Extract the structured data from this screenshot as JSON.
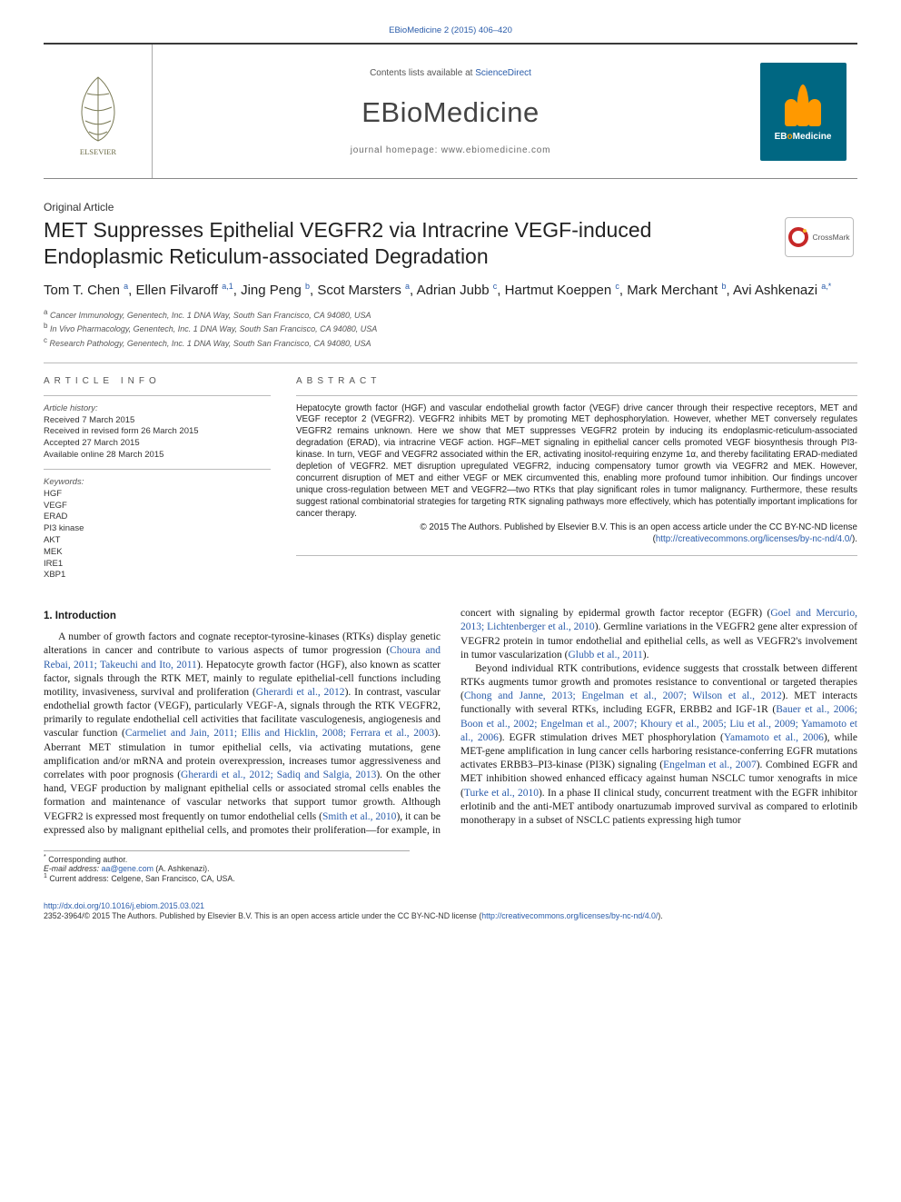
{
  "journal": {
    "running_head": "EBioMedicine 2 (2015) 406–420",
    "title": "EBioMedicine",
    "contents_prefix": "Contents lists available at ",
    "contents_link": "ScienceDirect",
    "homepage_prefix": "journal homepage: ",
    "homepage": "www.ebiomedicine.com",
    "cover_text_a": "EB",
    "cover_text_b": "o",
    "cover_text_c": "Medicine",
    "elsevier": "ELSEVIER"
  },
  "article": {
    "section": "Original Article",
    "title": "MET Suppresses Epithelial VEGFR2 via Intracrine VEGF-induced Endoplasmic Reticulum-associated Degradation",
    "crossmark": "CrossMark"
  },
  "authors_html_parts": [
    {
      "name": "Tom T. Chen",
      "aff": "a"
    },
    {
      "name": "Ellen Filvaroff",
      "aff": "a,1"
    },
    {
      "name": "Jing Peng",
      "aff": "b"
    },
    {
      "name": "Scot Marsters",
      "aff": "a"
    },
    {
      "name": "Adrian Jubb",
      "aff": "c"
    },
    {
      "name": "Hartmut Koeppen",
      "aff": "c"
    },
    {
      "name": "Mark Merchant",
      "aff": "b"
    },
    {
      "name": "Avi Ashkenazi",
      "aff": "a,*"
    }
  ],
  "affiliations": [
    {
      "sup": "a",
      "text": "Cancer Immunology, Genentech, Inc. 1 DNA Way, South San Francisco, CA 94080, USA"
    },
    {
      "sup": "b",
      "text": "In Vivo Pharmacology, Genentech, Inc. 1 DNA Way, South San Francisco, CA 94080, USA"
    },
    {
      "sup": "c",
      "text": "Research Pathology, Genentech, Inc. 1 DNA Way, South San Francisco, CA 94080, USA"
    }
  ],
  "info": {
    "block": "article info",
    "history_label": "Article history:",
    "history": [
      "Received 7 March 2015",
      "Received in revised form 26 March 2015",
      "Accepted 27 March 2015",
      "Available online 28 March 2015"
    ],
    "keywords_label": "Keywords:",
    "keywords": [
      "HGF",
      "VEGF",
      "ERAD",
      "PI3 kinase",
      "AKT",
      "MEK",
      "IRE1",
      "XBP1"
    ]
  },
  "abstract": {
    "block": "abstract",
    "body": "Hepatocyte growth factor (HGF) and vascular endothelial growth factor (VEGF) drive cancer through their respective receptors, MET and VEGF receptor 2 (VEGFR2). VEGFR2 inhibits MET by promoting MET dephosphorylation. However, whether MET conversely regulates VEGFR2 remains unknown. Here we show that MET suppresses VEGFR2 protein by inducing its endoplasmic-reticulum-associated degradation (ERAD), via intracrine VEGF action. HGF–MET signaling in epithelial cancer cells promoted VEGF biosynthesis through PI3-kinase. In turn, VEGF and VEGFR2 associated within the ER, activating inositol-requiring enzyme 1α, and thereby facilitating ERAD-mediated depletion of VEGFR2. MET disruption upregulated VEGFR2, inducing compensatory tumor growth via VEGFR2 and MEK. However, concurrent disruption of MET and either VEGF or MEK circumvented this, enabling more profound tumor inhibition. Our findings uncover unique cross-regulation between MET and VEGFR2—two RTKs that play significant roles in tumor malignancy. Furthermore, these results suggest rational combinatorial strategies for targeting RTK signaling pathways more effectively, which has potentially important implications for cancer therapy.",
    "copyright": "© 2015 The Authors. Published by Elsevier B.V. This is an open access article under the CC BY-NC-ND license",
    "license_url": "(http://creativecommons.org/licenses/by-nc-nd/4.0/).",
    "link_text": "http://creativecommons.org/licenses/by-nc-nd/4.0/"
  },
  "body": {
    "h1": "1. Introduction"
  },
  "footnotes": {
    "corr": "Corresponding author.",
    "email_label": "E-mail address: ",
    "email": "aa@gene.com",
    "email_name": " (A. Ashkenazi).",
    "note1": "Current address: Celgene, San Francisco, CA, USA."
  },
  "footer": {
    "doi": "http://dx.doi.org/10.1016/j.ebiom.2015.03.021",
    "issn_line_a": "2352-3964/© 2015 The Authors. Published by Elsevier B.V. This is an open access article under the CC BY-NC-ND license (",
    "issn_link": "http://creativecommons.org/licenses/by-nc-nd/4.0/",
    "issn_line_b": ")."
  },
  "colors": {
    "link": "#2a5caa",
    "rule": "#3a3a3a",
    "cover_bg": "#006782",
    "cover_flame": "#ff9900"
  }
}
